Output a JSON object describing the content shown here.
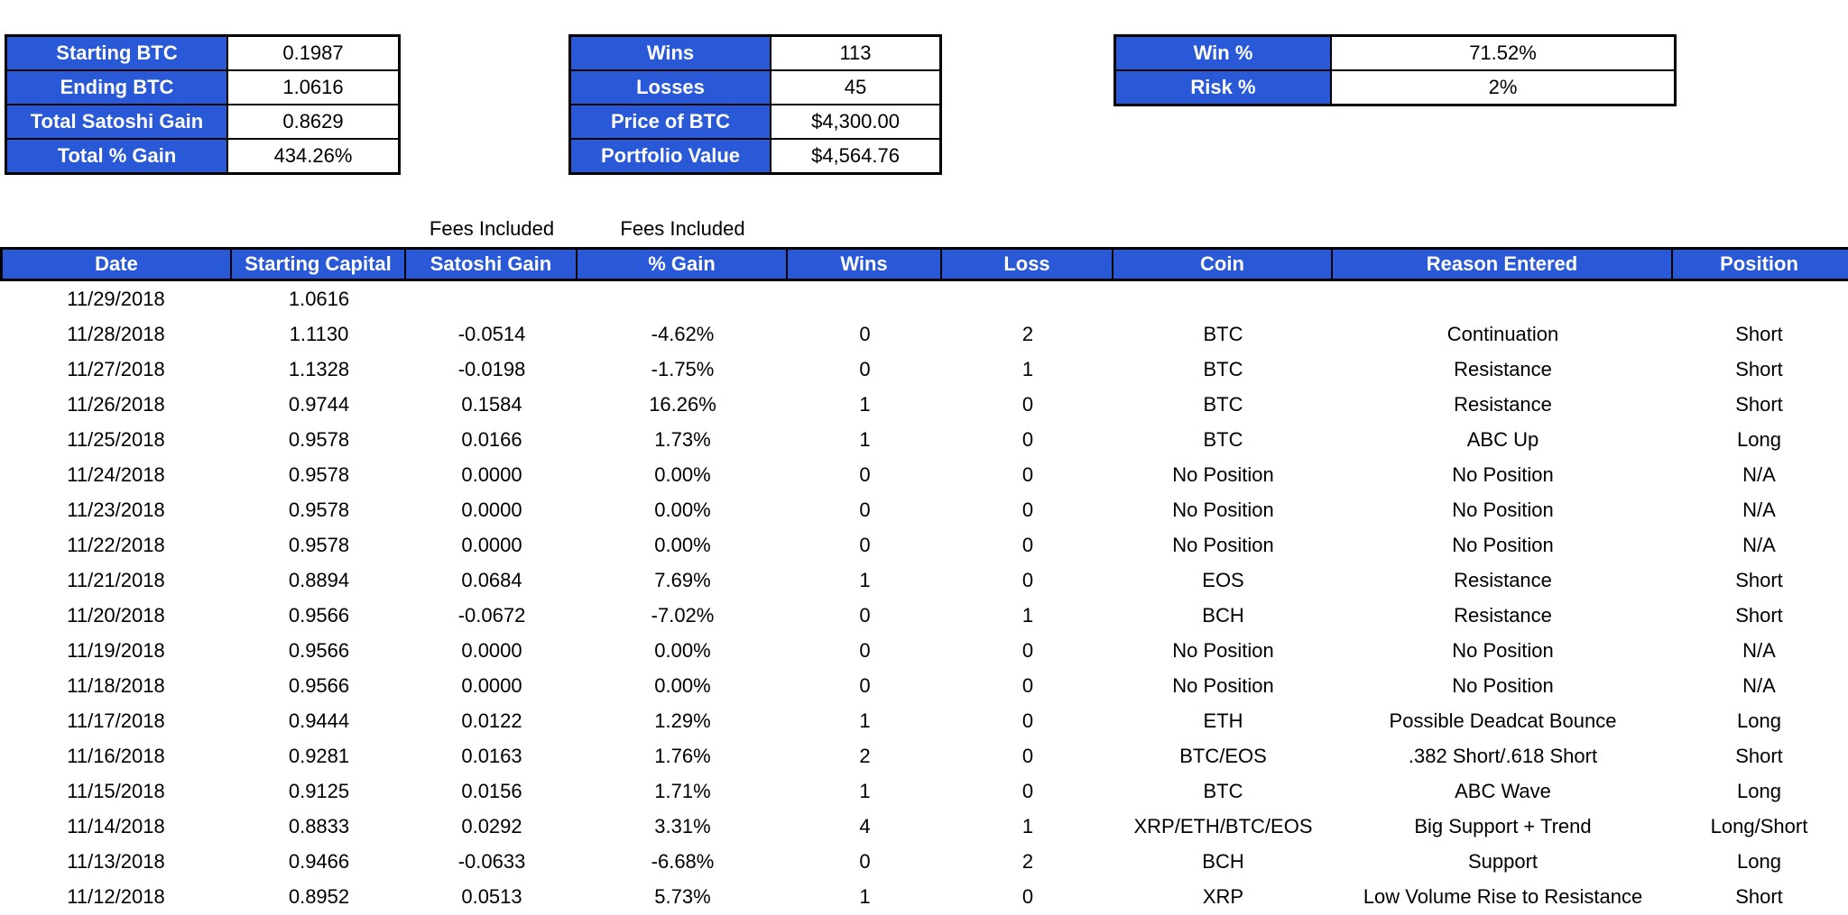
{
  "accent_color": "#2a59d8",
  "summary_boxes": [
    {
      "title": "btc-summary",
      "rows": [
        [
          "Starting BTC",
          "0.1987"
        ],
        [
          "Ending BTC",
          "1.0616"
        ],
        [
          "Total Satoshi Gain",
          "0.8629"
        ],
        [
          "Total % Gain",
          "434.26%"
        ]
      ]
    },
    {
      "title": "wins-losses-summary",
      "rows": [
        [
          "Wins",
          "113"
        ],
        [
          "Losses",
          "45"
        ],
        [
          "Price of BTC",
          "$4,300.00"
        ],
        [
          "Portfolio Value",
          "$4,564.76"
        ]
      ]
    },
    {
      "title": "win-risk-summary",
      "rows": [
        [
          "Win %",
          "71.52%"
        ],
        [
          "Risk %",
          "2%"
        ]
      ]
    }
  ],
  "fees_notes": [
    "Fees Included",
    "Fees Included"
  ],
  "main_table": {
    "columns": [
      "Date",
      "Starting Capital",
      "Satoshi Gain",
      "% Gain",
      "Wins",
      "Loss",
      "Coin",
      "Reason Entered",
      "Position"
    ],
    "column_keys": [
      "date",
      "starting-capital",
      "satoshi-gain",
      "pct-gain",
      "wins",
      "loss",
      "coin",
      "reason-entered",
      "position"
    ],
    "rows": [
      [
        "11/29/2018",
        "1.0616",
        "",
        "",
        "",
        "",
        "",
        "",
        ""
      ],
      [
        "11/28/2018",
        "1.1130",
        "-0.0514",
        "-4.62%",
        "0",
        "2",
        "BTC",
        "Continuation",
        "Short"
      ],
      [
        "11/27/2018",
        "1.1328",
        "-0.0198",
        "-1.75%",
        "0",
        "1",
        "BTC",
        "Resistance",
        "Short"
      ],
      [
        "11/26/2018",
        "0.9744",
        "0.1584",
        "16.26%",
        "1",
        "0",
        "BTC",
        "Resistance",
        "Short"
      ],
      [
        "11/25/2018",
        "0.9578",
        "0.0166",
        "1.73%",
        "1",
        "0",
        "BTC",
        "ABC Up",
        "Long"
      ],
      [
        "11/24/2018",
        "0.9578",
        "0.0000",
        "0.00%",
        "0",
        "0",
        "No Position",
        "No Position",
        "N/A"
      ],
      [
        "11/23/2018",
        "0.9578",
        "0.0000",
        "0.00%",
        "0",
        "0",
        "No Position",
        "No Position",
        "N/A"
      ],
      [
        "11/22/2018",
        "0.9578",
        "0.0000",
        "0.00%",
        "0",
        "0",
        "No Position",
        "No Position",
        "N/A"
      ],
      [
        "11/21/2018",
        "0.8894",
        "0.0684",
        "7.69%",
        "1",
        "0",
        "EOS",
        "Resistance",
        "Short"
      ],
      [
        "11/20/2018",
        "0.9566",
        "-0.0672",
        "-7.02%",
        "0",
        "1",
        "BCH",
        "Resistance",
        "Short"
      ],
      [
        "11/19/2018",
        "0.9566",
        "0.0000",
        "0.00%",
        "0",
        "0",
        "No Position",
        "No Position",
        "N/A"
      ],
      [
        "11/18/2018",
        "0.9566",
        "0.0000",
        "0.00%",
        "0",
        "0",
        "No Position",
        "No Position",
        "N/A"
      ],
      [
        "11/17/2018",
        "0.9444",
        "0.0122",
        "1.29%",
        "1",
        "0",
        "ETH",
        "Possible Deadcat Bounce",
        "Long"
      ],
      [
        "11/16/2018",
        "0.9281",
        "0.0163",
        "1.76%",
        "2",
        "0",
        "BTC/EOS",
        ".382 Short/.618 Short",
        "Short"
      ],
      [
        "11/15/2018",
        "0.9125",
        "0.0156",
        "1.71%",
        "1",
        "0",
        "BTC",
        "ABC Wave",
        "Long"
      ],
      [
        "11/14/2018",
        "0.8833",
        "0.0292",
        "3.31%",
        "4",
        "1",
        "XRP/ETH/BTC/EOS",
        "Big Support + Trend",
        "Long/Short"
      ],
      [
        "11/13/2018",
        "0.9466",
        "-0.0633",
        "-6.68%",
        "0",
        "2",
        "BCH",
        "Support",
        "Long"
      ],
      [
        "11/12/2018",
        "0.8952",
        "0.0513",
        "5.73%",
        "1",
        "0",
        "XRP",
        "Low Volume Rise to Resistance",
        "Short"
      ]
    ]
  }
}
